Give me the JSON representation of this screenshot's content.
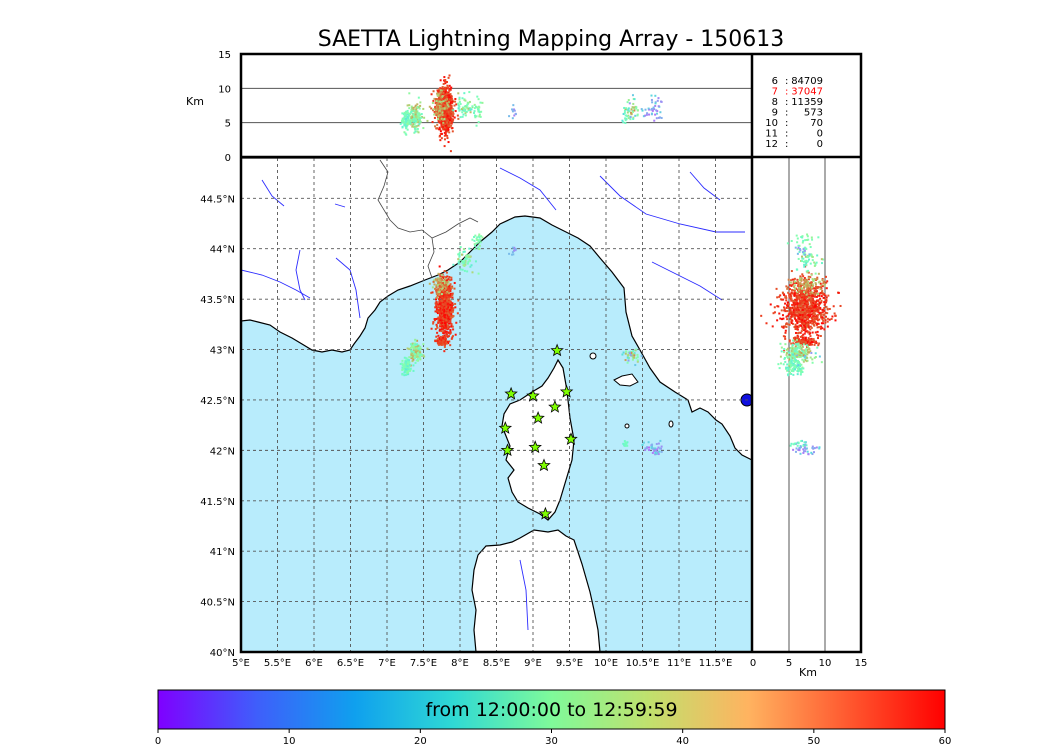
{
  "title": "SAETTA Lightning Mapping Array - 150613",
  "top_panel": {
    "ylabel": "Km",
    "yticks": [
      0,
      5,
      10,
      15
    ],
    "gridlines": [
      5,
      10
    ]
  },
  "map": {
    "lon_range": [
      5,
      12
    ],
    "lat_range": [
      40,
      44.9
    ],
    "xtick_values": [
      5,
      5.5,
      6,
      6.5,
      7,
      7.5,
      8,
      8.5,
      9,
      9.5,
      10,
      10.5,
      11,
      11.5
    ],
    "xtick_labels": [
      "5°E",
      "5.5°E",
      "6°E",
      "6.5°E",
      "7°E",
      "7.5°E",
      "8°E",
      "8.5°E",
      "9°E",
      "9.5°E",
      "10°E",
      "10.5°E",
      "11°E",
      "11.5°E"
    ],
    "ytick_values": [
      40,
      40.5,
      41,
      41.5,
      42,
      42.5,
      43,
      43.5,
      44,
      44.5
    ],
    "ytick_labels": [
      "40°N",
      "40.5°N",
      "41°N",
      "41.5°N",
      "42°N",
      "42.5°N",
      "43°N",
      "43.5°N",
      "44°N",
      "44.5°N"
    ],
    "sea_color": "#b8ecfc",
    "land_color": "#ffffff",
    "rivers_color": "#2b2bff",
    "stations": [
      [
        9.33,
        42.99
      ],
      [
        8.7,
        42.56
      ],
      [
        9.0,
        42.54
      ],
      [
        9.46,
        42.58
      ],
      [
        8.62,
        42.22
      ],
      [
        9.07,
        42.32
      ],
      [
        9.3,
        42.43
      ],
      [
        8.65,
        42.0
      ],
      [
        9.03,
        42.03
      ],
      [
        9.52,
        42.11
      ],
      [
        9.15,
        41.85
      ],
      [
        9.17,
        41.37
      ]
    ]
  },
  "side_panel": {
    "xlabel": "Km",
    "xticks": [
      0,
      5,
      10,
      15
    ],
    "gridlines": [
      5,
      10
    ]
  },
  "stats": [
    {
      "n": "6",
      "count": "84709",
      "color": "#000000"
    },
    {
      "n": "7",
      "count": "37047",
      "color": "#ff0000"
    },
    {
      "n": "8",
      "count": "11359",
      "color": "#000000"
    },
    {
      "n": "9",
      "count": "573",
      "color": "#000000"
    },
    {
      "n": "10",
      "count": "70",
      "color": "#000000"
    },
    {
      "n": "11",
      "count": "0",
      "color": "#000000"
    },
    {
      "n": "12",
      "count": "0",
      "color": "#000000"
    }
  ],
  "colorbar": {
    "label": "from 12:00:00 to 12:59:59",
    "min": 0,
    "max": 60,
    "ticks": [
      0,
      10,
      20,
      30,
      40,
      50,
      60
    ],
    "colormap": "rainbow"
  },
  "chart_data": {
    "type": "scatter",
    "title": "SAETTA Lightning Mapping Array - 150613",
    "xlabel": "",
    "ylabel": "",
    "xlim": [
      5,
      12
    ],
    "ylim": [
      40,
      44.9
    ],
    "altitude_lim_km": [
      0,
      15
    ],
    "color_variable_range_min": [
      0,
      60
    ],
    "clusters": [
      {
        "lon": 7.78,
        "lat": 43.42,
        "dlon": 0.09,
        "dlat": 0.22,
        "alt": 7.0,
        "dalt": 2.6,
        "time": [
          52,
          60
        ],
        "weight": 900
      },
      {
        "lon": 7.74,
        "lat": 43.09,
        "dlon": 0.06,
        "dlat": 0.03,
        "alt": 7.0,
        "dalt": 1.2,
        "time": [
          52,
          60
        ],
        "weight": 160
      },
      {
        "lon": 7.38,
        "lat": 42.98,
        "dlon": 0.07,
        "dlat": 0.08,
        "alt": 6.0,
        "dalt": 1.6,
        "time": [
          24,
          48
        ],
        "weight": 150
      },
      {
        "lon": 7.25,
        "lat": 42.84,
        "dlon": 0.05,
        "dlat": 0.07,
        "alt": 5.5,
        "dalt": 1.4,
        "time": [
          22,
          34
        ],
        "weight": 90
      },
      {
        "lon": 7.72,
        "lat": 43.65,
        "dlon": 0.08,
        "dlat": 0.08,
        "alt": 7.5,
        "dalt": 2.0,
        "time": [
          38,
          54
        ],
        "weight": 110
      },
      {
        "lon": 8.05,
        "lat": 43.9,
        "dlon": 0.1,
        "dlat": 0.1,
        "alt": 7.5,
        "dalt": 1.5,
        "time": [
          22,
          44
        ],
        "weight": 55
      },
      {
        "lon": 8.22,
        "lat": 44.08,
        "dlon": 0.05,
        "dlat": 0.08,
        "alt": 7.0,
        "dalt": 1.3,
        "time": [
          25,
          36
        ],
        "weight": 25
      },
      {
        "lon": 10.35,
        "lat": 42.95,
        "dlon": 0.1,
        "dlat": 0.05,
        "alt": 7.0,
        "dalt": 1.5,
        "time": [
          12,
          50
        ],
        "weight": 45
      },
      {
        "lon": 10.65,
        "lat": 42.02,
        "dlon": 0.12,
        "dlat": 0.05,
        "alt": 7.0,
        "dalt": 1.5,
        "time": [
          8,
          20
        ],
        "weight": 40
      },
      {
        "lon": 10.25,
        "lat": 42.08,
        "dlon": 0.03,
        "dlat": 0.03,
        "alt": 6.5,
        "dalt": 1.0,
        "time": [
          24,
          30
        ],
        "weight": 12
      },
      {
        "lon": 8.72,
        "lat": 43.99,
        "dlon": 0.04,
        "dlat": 0.04,
        "alt": 7.0,
        "dalt": 1.0,
        "time": [
          10,
          18
        ],
        "weight": 10
      }
    ]
  }
}
